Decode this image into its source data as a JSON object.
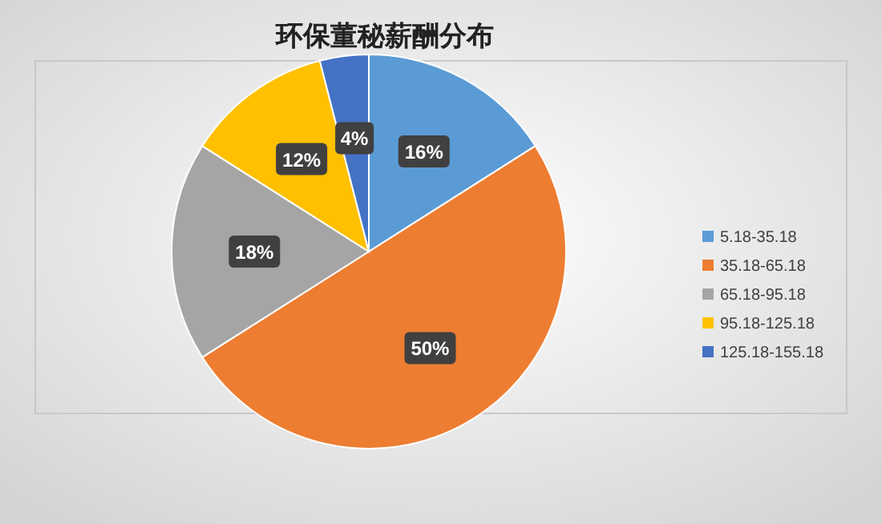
{
  "chart_data": {
    "type": "pie",
    "title": "环保董秘薪酬分布",
    "categories": [
      "5.18-35.18",
      "35.18-65.18",
      "65.18-95.18",
      "95.18-125.18",
      "125.18-155.18"
    ],
    "values": [
      16,
      50,
      18,
      12,
      4
    ],
    "colors": [
      "#5b9bd5",
      "#ed7d31",
      "#a5a5a5",
      "#ffc000",
      "#4472c4"
    ],
    "value_labels": [
      "16%",
      "50%",
      "18%",
      "12%",
      "4%"
    ],
    "legend": "right"
  }
}
